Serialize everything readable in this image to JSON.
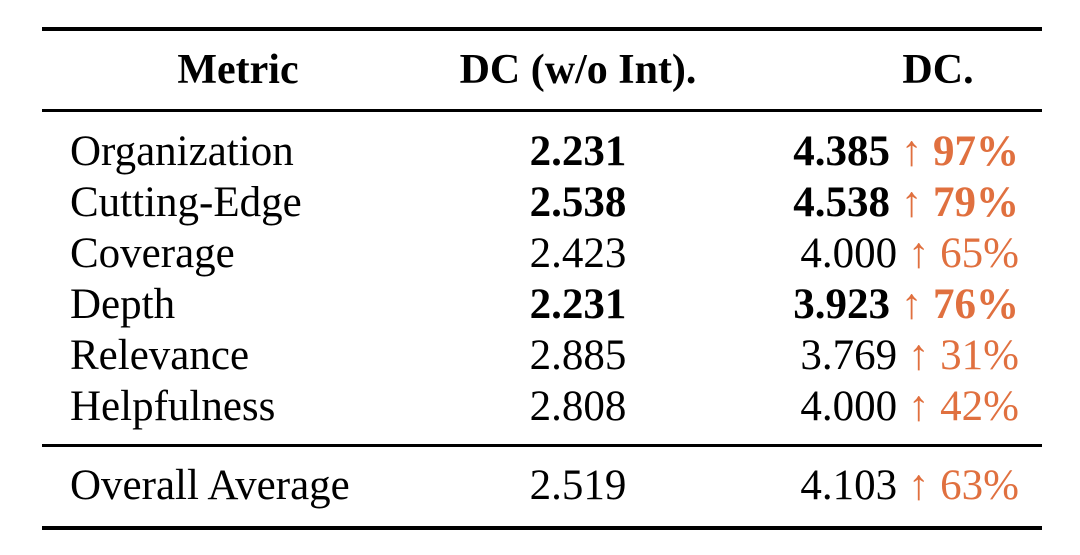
{
  "table": {
    "headers": [
      "Metric",
      "DC (w/o Int).",
      "DC."
    ],
    "rows": [
      {
        "metric": "Organization",
        "without_int": "2.231",
        "dc": "4.385",
        "arrow": "↑",
        "gain": "97%",
        "bold": true
      },
      {
        "metric": "Cutting-Edge",
        "without_int": "2.538",
        "dc": "4.538",
        "arrow": "↑",
        "gain": "79%",
        "bold": true
      },
      {
        "metric": "Coverage",
        "without_int": "2.423",
        "dc": "4.000",
        "arrow": "↑",
        "gain": "65%",
        "bold": false
      },
      {
        "metric": "Depth",
        "without_int": "2.231",
        "dc": "3.923",
        "arrow": "↑",
        "gain": "76%",
        "bold": true
      },
      {
        "metric": "Relevance",
        "without_int": "2.885",
        "dc": "3.769",
        "arrow": "↑",
        "gain": "31%",
        "bold": false
      },
      {
        "metric": "Helpfulness",
        "without_int": "2.808",
        "dc": "4.000",
        "arrow": "↑",
        "gain": "42%",
        "bold": false
      }
    ],
    "average": {
      "metric": "Overall Average",
      "without_int": "2.519",
      "dc": "4.103",
      "arrow": "↑",
      "gain": "63%"
    }
  },
  "colors": {
    "gain": "#e0703f",
    "text": "#000000"
  }
}
